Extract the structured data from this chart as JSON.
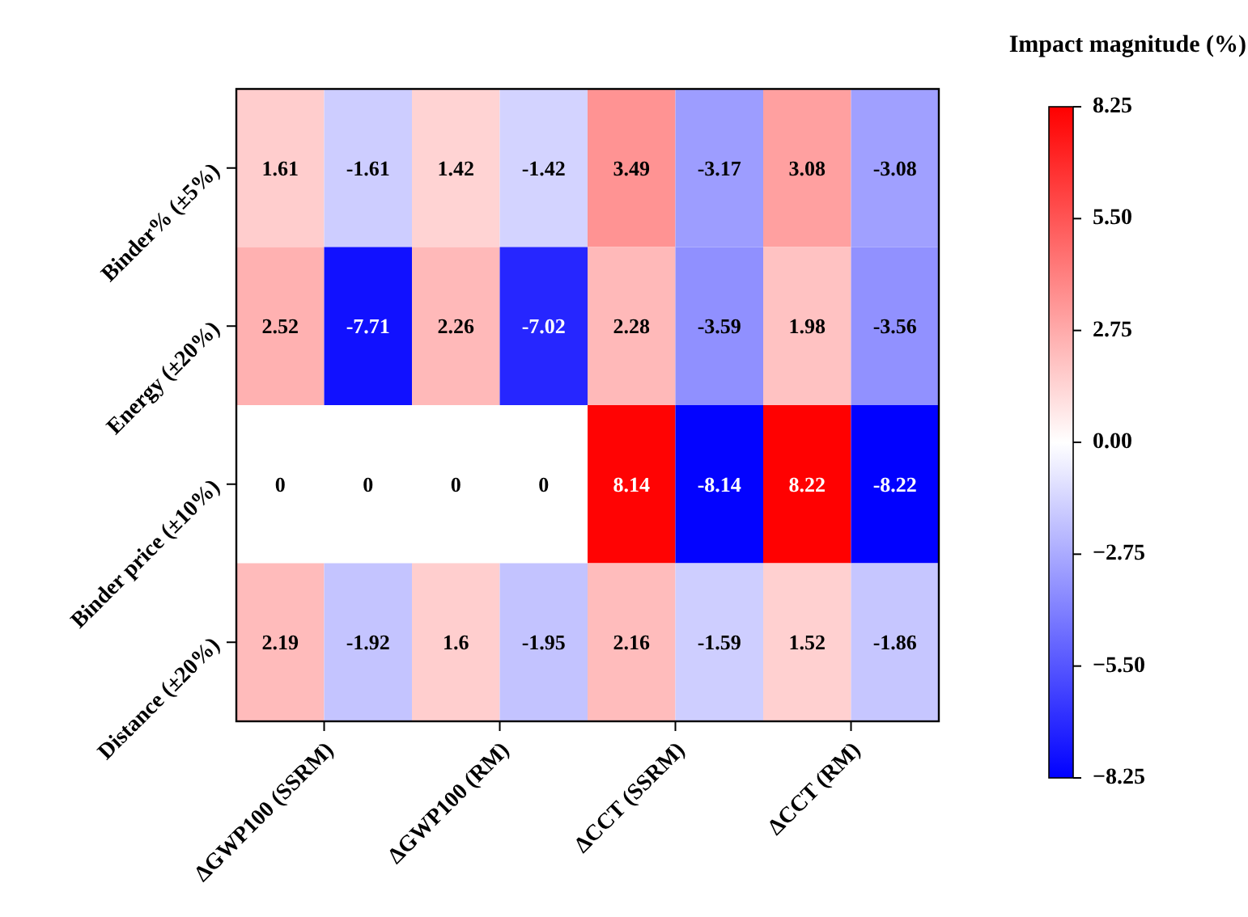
{
  "chart_data": {
    "type": "heatmap",
    "clabel": "Impact magnitude (%)",
    "categories": [
      "ΔGWP100 (SSRM)",
      null,
      "ΔGWP100 (RM)",
      null,
      "ΔCCT (SSRM)",
      null,
      "ΔCCT (RM)",
      null
    ],
    "y_categories": [
      "Binder% (±5%)",
      "Energy (±20%)",
      "Binder price (±10%)",
      "Distance (±20%)"
    ],
    "cells": [
      [
        1.61,
        -1.61,
        1.42,
        -1.42,
        3.49,
        -3.17,
        3.08,
        -3.08
      ],
      [
        2.52,
        -7.71,
        2.26,
        -7.02,
        2.28,
        -3.59,
        1.98,
        -3.56
      ],
      [
        0,
        0,
        0,
        0,
        8.14,
        -8.14,
        8.22,
        -8.22
      ],
      [
        2.19,
        -1.92,
        1.6,
        -1.95,
        2.16,
        -1.59,
        1.52,
        -1.86
      ]
    ],
    "data_labels": true,
    "clim": [
      -8.25,
      8.25
    ],
    "cticks": [
      {
        "value": 8.25,
        "label": "8.25"
      },
      {
        "value": 5.5,
        "label": "5.50"
      },
      {
        "value": 2.75,
        "label": "2.75"
      },
      {
        "value": 0,
        "label": "0.00"
      },
      {
        "value": -2.75,
        "label": "−2.75"
      },
      {
        "value": -5.5,
        "label": "−5.50"
      },
      {
        "value": -8.25,
        "label": "−8.25"
      }
    ]
  }
}
